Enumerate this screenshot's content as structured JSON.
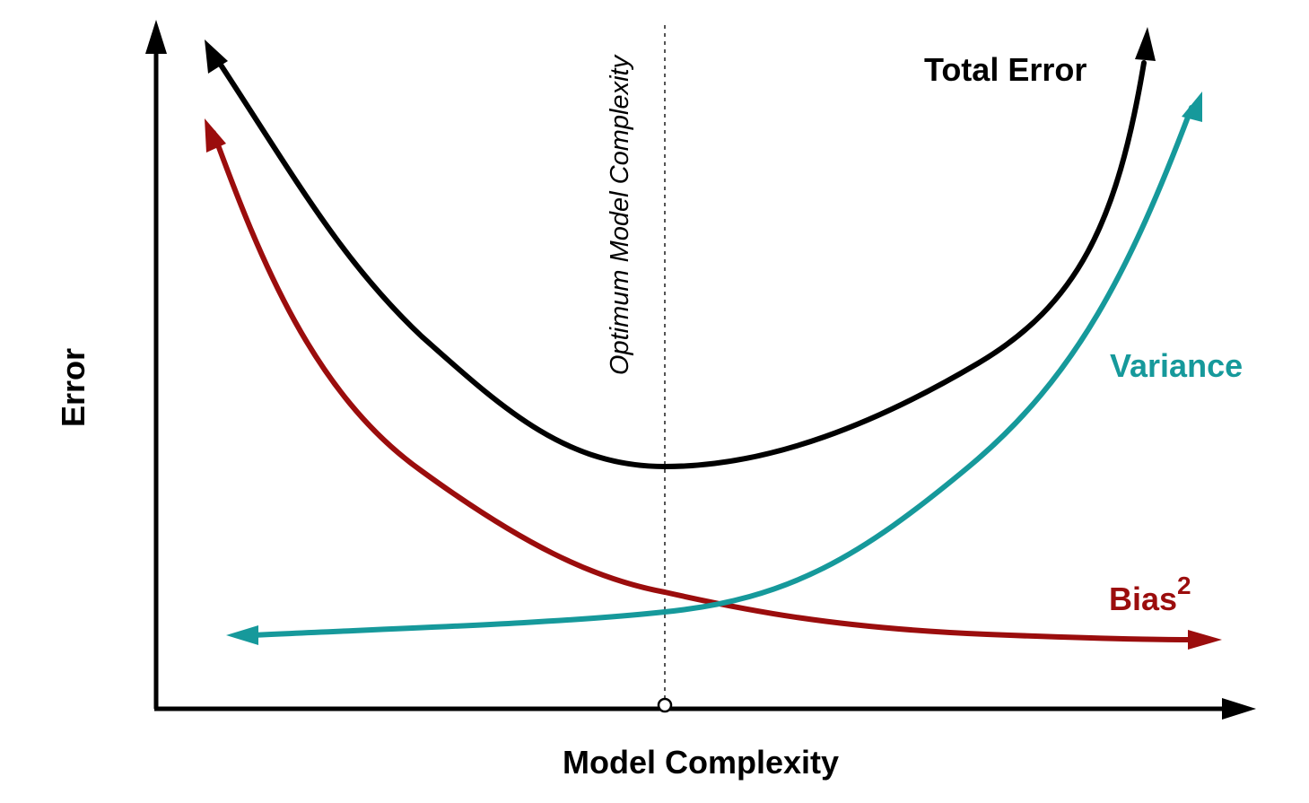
{
  "labels": {
    "x_axis": "Model Complexity",
    "y_axis": "Error",
    "optimum": "Optimum Model Complexity"
  },
  "curves": {
    "total_error": {
      "label": "Total Error",
      "color": "#000000"
    },
    "variance": {
      "label": "Variance",
      "color": "#16999b"
    },
    "bias": {
      "label": "Bias",
      "superscript": "2",
      "color": "#9b0d0d"
    }
  },
  "axis_color": "#000000",
  "optimum_line_color": "#555555"
}
